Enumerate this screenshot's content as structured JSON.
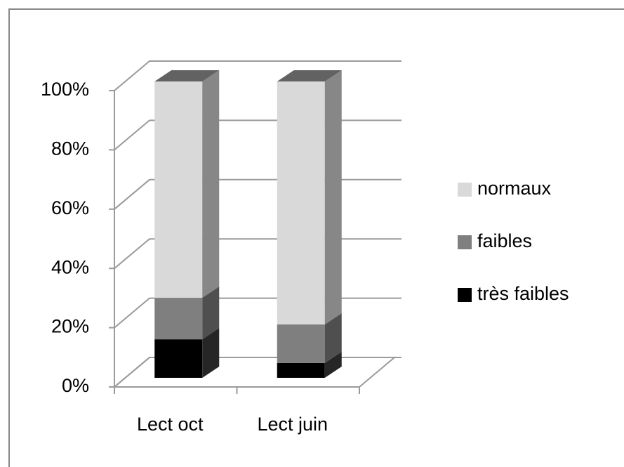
{
  "chart_data": {
    "type": "bar3d_stacked",
    "categories": [
      "Lect oct",
      "Lect juin"
    ],
    "series": [
      {
        "name": "très faibles",
        "color": "#000000",
        "values": [
          13,
          5
        ]
      },
      {
        "name": "faibles",
        "color": "#7f7f7f",
        "values": [
          14,
          13
        ]
      },
      {
        "name": "normaux",
        "color": "#d9d9d9",
        "values": [
          73,
          82
        ]
      }
    ],
    "ylim": [
      0,
      100
    ],
    "yticks": [
      {
        "value": 0,
        "label": "0%"
      },
      {
        "value": 20,
        "label": "20%"
      },
      {
        "value": 40,
        "label": "40%"
      },
      {
        "value": 60,
        "label": "60%"
      },
      {
        "value": 80,
        "label": "80%"
      },
      {
        "value": 100,
        "label": "100%"
      }
    ],
    "grid": true,
    "legend": "right"
  }
}
